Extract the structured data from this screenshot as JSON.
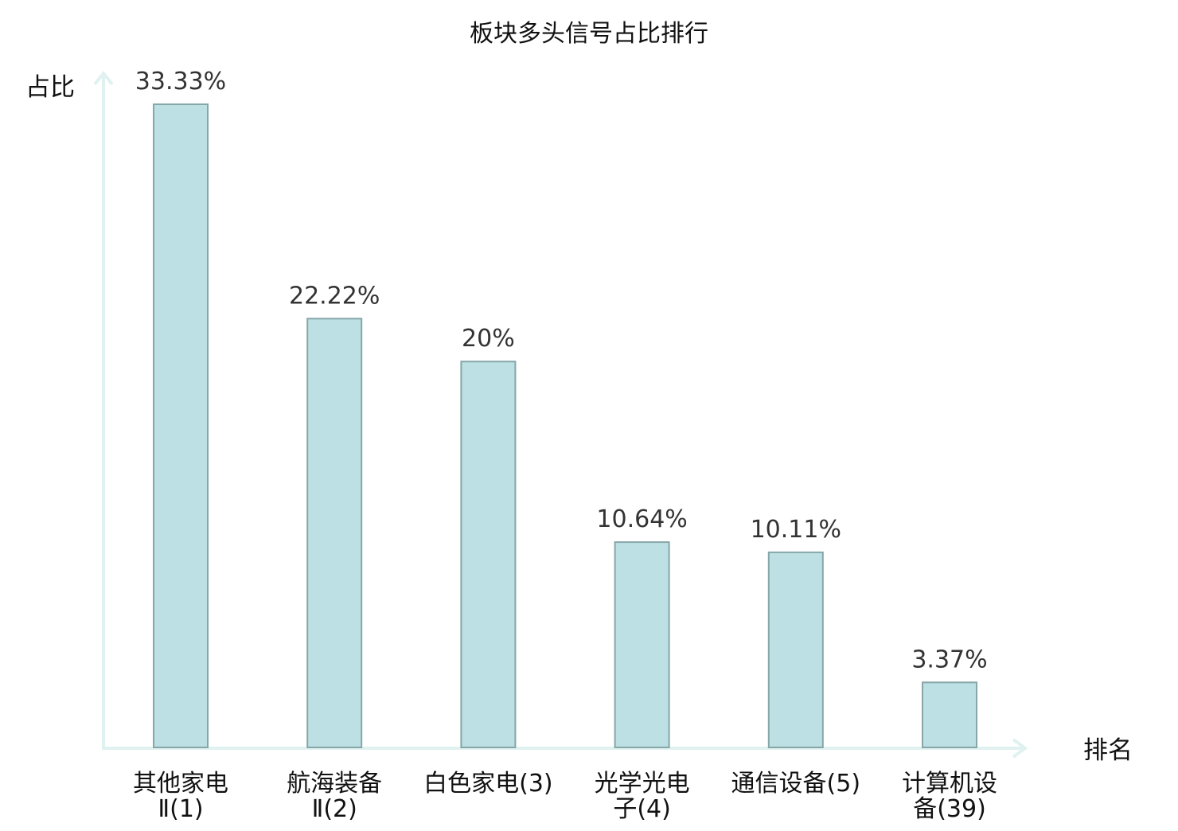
{
  "chart_data": {
    "type": "bar",
    "title": "板块多头信号占比排行",
    "xlabel": "排名",
    "ylabel": "占比",
    "categories": [
      [
        "其他家电",
        "Ⅱ(1)"
      ],
      [
        "航海装备",
        "Ⅱ(2)"
      ],
      [
        "白色家电(3)"
      ],
      [
        "光学光电",
        "子(4)"
      ],
      [
        "通信设备(5)"
      ],
      [
        "计算机设",
        "备(39)"
      ]
    ],
    "values": [
      33.33,
      22.22,
      20,
      10.64,
      10.11,
      3.37
    ],
    "value_labels": [
      "33.33%",
      "22.22%",
      "20%",
      "10.64%",
      "10.11%",
      "3.37%"
    ],
    "highlight_index": 5,
    "ylim": [
      0,
      33.33
    ],
    "grid": false,
    "legend": "none"
  },
  "colors": {
    "bar_fill": "#bce0e3",
    "bar_stroke": "#86a6a8",
    "axis": "#e0f2ef",
    "text": "#111111",
    "value_text": "#333333",
    "highlight": "#e8141b"
  }
}
